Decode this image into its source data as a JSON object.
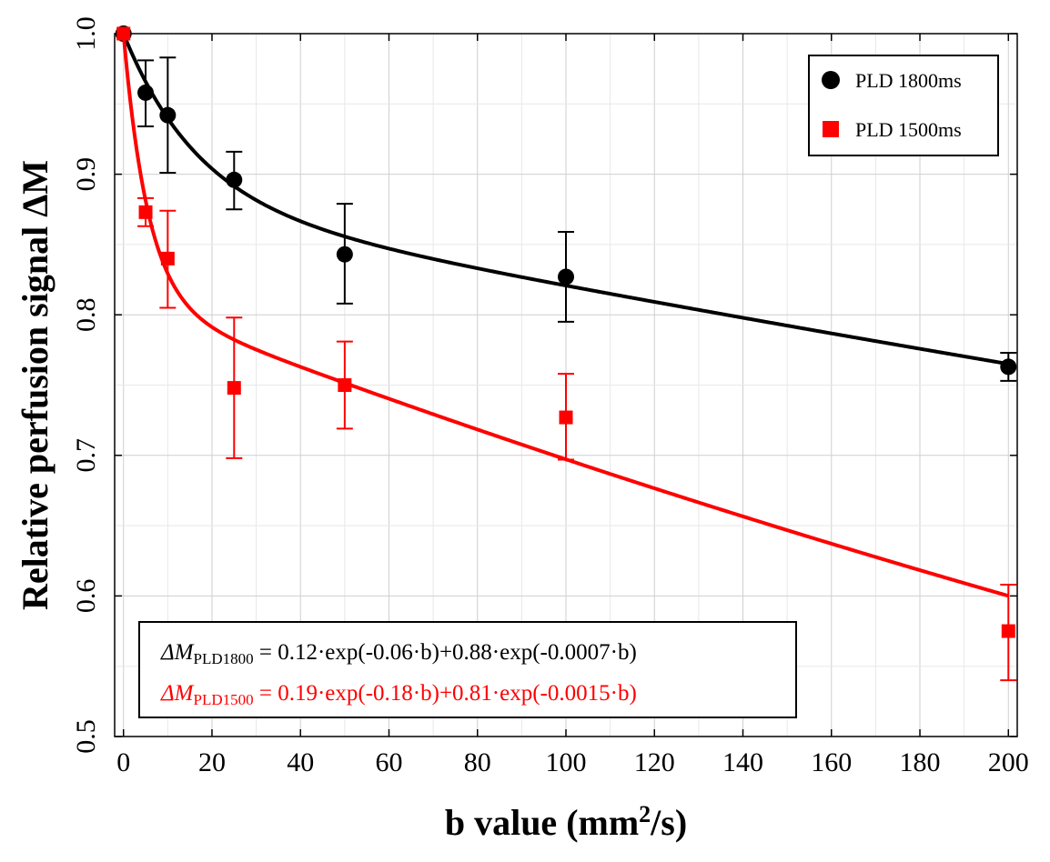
{
  "chart_data": {
    "type": "scatter",
    "title": "",
    "xlabel": "b value (mm",
    "xlabel_sup": "2",
    "xlabel_end": "/s)",
    "ylabel": "Relative perfusion signal ΔM",
    "xlim": [
      -2,
      202
    ],
    "ylim": [
      0.5,
      1.0
    ],
    "x_ticks": [
      0,
      20,
      40,
      60,
      80,
      100,
      120,
      140,
      160,
      180,
      200
    ],
    "x_tick_labels": [
      "0",
      "20",
      "40",
      "60",
      "80",
      "100",
      "120",
      "140",
      "160",
      "180",
      "200"
    ],
    "y_ticks": [
      0.5,
      0.6,
      0.7,
      0.8,
      0.9,
      1.0
    ],
    "y_tick_labels": [
      "0.5",
      "0.6",
      "0.7",
      "0.8",
      "0.9",
      "1.0"
    ],
    "grid": true,
    "legend_position": "top-right",
    "series": [
      {
        "name": "PLD 1800ms",
        "color": "#000000",
        "marker": "circle",
        "x": [
          0,
          5,
          10,
          25,
          50,
          100,
          200
        ],
        "y": [
          1.0,
          0.958,
          0.942,
          0.896,
          0.843,
          0.827,
          0.763
        ],
        "err_low": [
          1.0,
          0.934,
          0.901,
          0.875,
          0.808,
          0.795,
          0.753
        ],
        "err_high": [
          1.0,
          0.981,
          0.983,
          0.916,
          0.879,
          0.859,
          0.773
        ],
        "fit": {
          "a1": 0.12,
          "k1": 0.06,
          "a2": 0.88,
          "k2": 0.0007
        }
      },
      {
        "name": "PLD 1500ms",
        "color": "#ff0000",
        "marker": "square",
        "x": [
          0,
          5,
          10,
          25,
          50,
          100,
          200
        ],
        "y": [
          1.0,
          0.873,
          0.84,
          0.748,
          0.75,
          0.727,
          0.575
        ],
        "err_low": [
          1.0,
          0.863,
          0.805,
          0.698,
          0.719,
          0.697,
          0.54
        ],
        "err_high": [
          1.0,
          0.883,
          0.874,
          0.798,
          0.781,
          0.758,
          0.608
        ],
        "fit": {
          "a1": 0.19,
          "k1": 0.18,
          "a2": 0.81,
          "k2": 0.0015
        }
      }
    ],
    "equations": [
      {
        "lhs": "ΔM",
        "sub": "PLD1800",
        "rhs": " = 0.12·exp(-0.06·b)+0.88·exp(-0.0007·b)",
        "color": "#000000"
      },
      {
        "lhs": "ΔM",
        "sub": "PLD1500",
        "rhs": " = 0.19·exp(-0.18·b)+0.81·exp(-0.0015·b)",
        "color": "#ff0000"
      }
    ]
  }
}
